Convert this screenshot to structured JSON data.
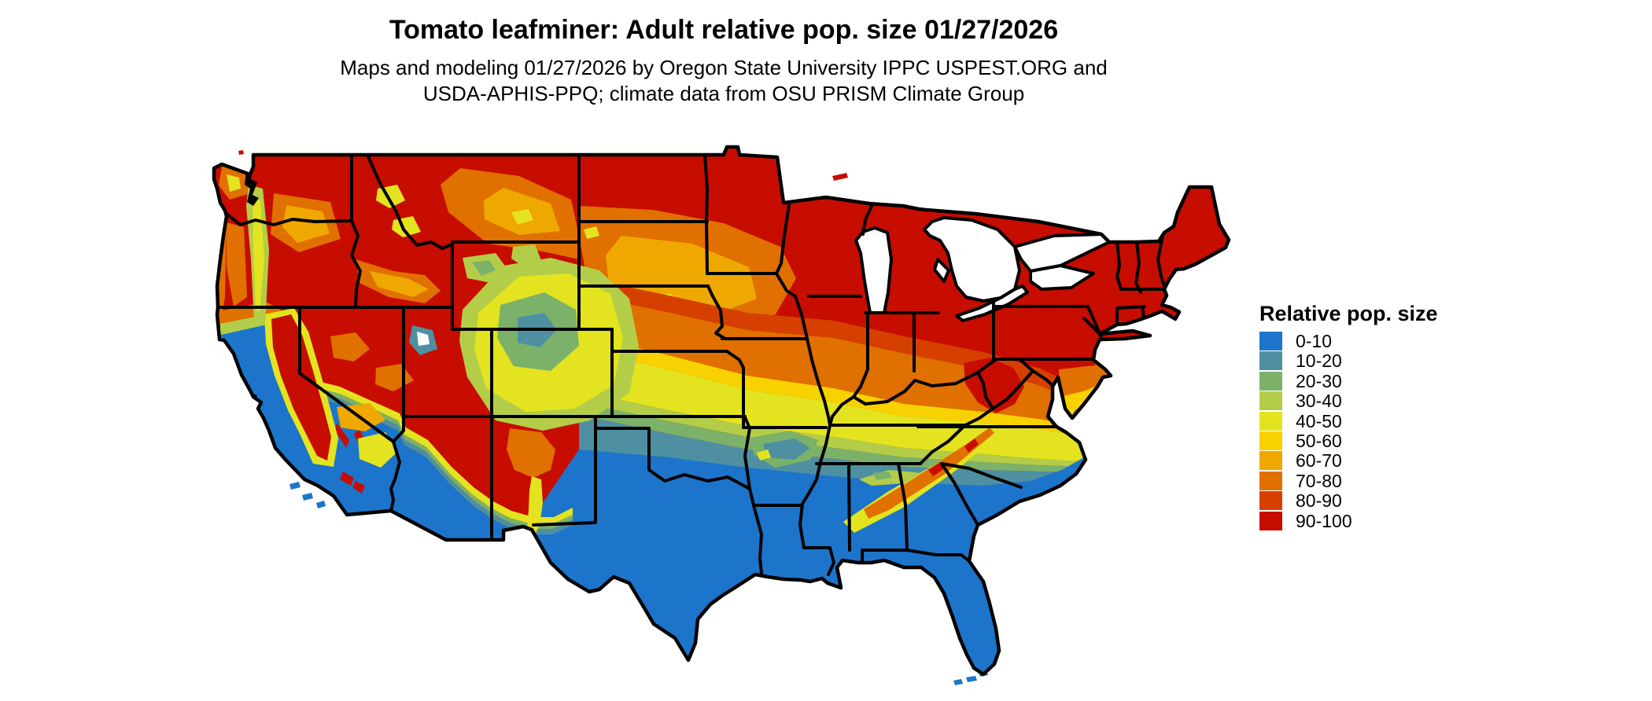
{
  "header": {
    "title": "Tomato leafminer: Adult relative pop. size 01/27/2026",
    "subtitle_line1": "Maps and modeling 01/27/2026 by Oregon State University IPPC USPEST.ORG and",
    "subtitle_line2": "USDA-APHIS-PPQ; climate data from OSU PRISM Climate Group"
  },
  "legend": {
    "title": "Relative pop. size",
    "items": [
      {
        "label": "0-10",
        "color": "#1c75cb"
      },
      {
        "label": "10-20",
        "color": "#4e90a1"
      },
      {
        "label": "20-30",
        "color": "#7cb16a"
      },
      {
        "label": "30-40",
        "color": "#b4cd48"
      },
      {
        "label": "40-50",
        "color": "#e3e41f"
      },
      {
        "label": "50-60",
        "color": "#f8d200"
      },
      {
        "label": "60-70",
        "color": "#efa800"
      },
      {
        "label": "70-80",
        "color": "#e07000"
      },
      {
        "label": "80-90",
        "color": "#d54000"
      },
      {
        "label": "90-100",
        "color": "#c60d00"
      }
    ]
  },
  "map": {
    "region": "Contiguous United States"
  }
}
